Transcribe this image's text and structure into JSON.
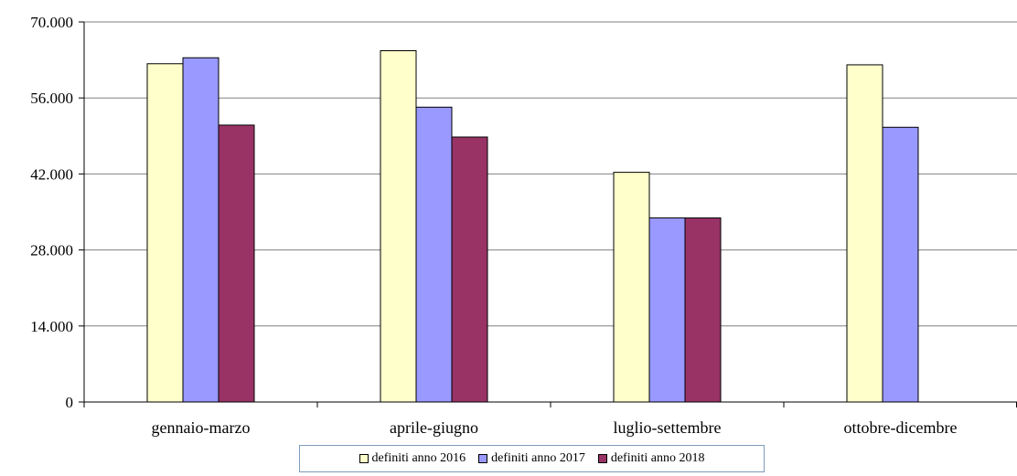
{
  "chart_data": {
    "type": "bar",
    "categories": [
      "gennaio-marzo",
      "aprile-giugno",
      "luglio-settembre",
      "ottobre-dicembre"
    ],
    "series": [
      {
        "name": "definiti anno 2016",
        "color": "#ffffcc",
        "values": [
          62300,
          64700,
          42300,
          62100
        ]
      },
      {
        "name": "definiti anno 2017",
        "color": "#9999ff",
        "values": [
          63400,
          54300,
          33900,
          50600
        ]
      },
      {
        "name": "definiti anno 2018",
        "color": "#993366",
        "values": [
          51000,
          48800,
          33900,
          null
        ]
      }
    ],
    "ylim": [
      0,
      70000
    ],
    "yticks": [
      0,
      14000,
      28000,
      42000,
      56000,
      70000
    ],
    "ytick_labels": [
      "0",
      "14.000",
      "28.000",
      "42.000",
      "56.000",
      "70.000"
    ],
    "grid": true,
    "legend_position": "bottom"
  }
}
